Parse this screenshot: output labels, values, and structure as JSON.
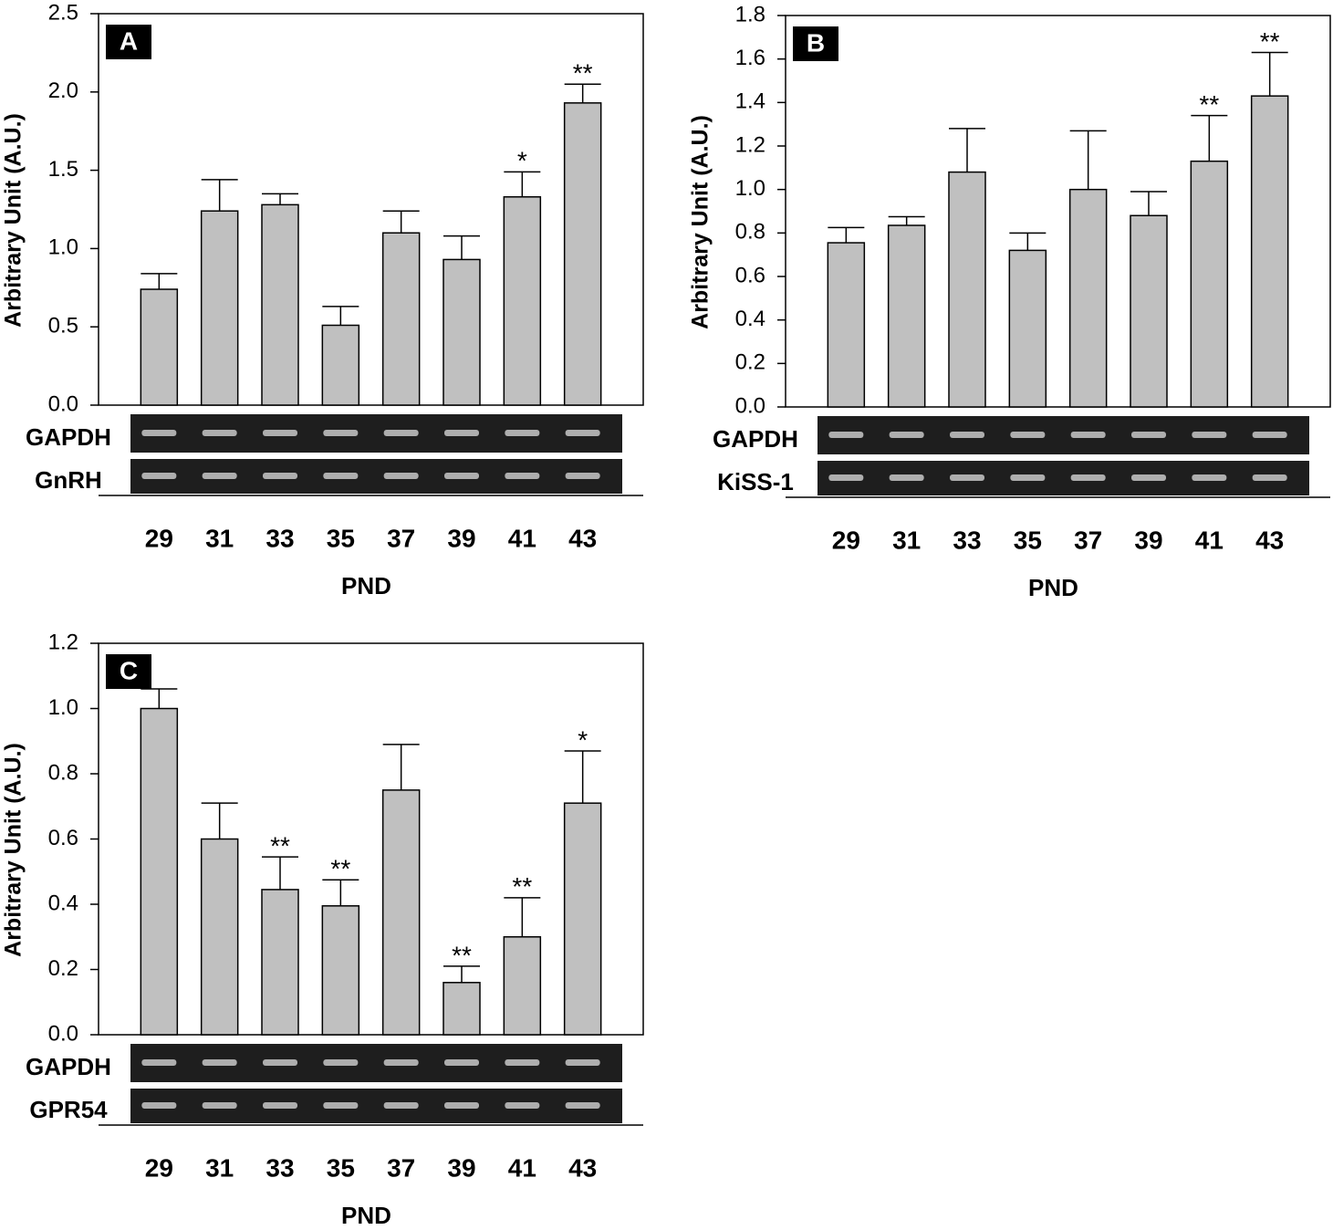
{
  "chart_data": [
    {
      "type": "bar",
      "panel_label": "A",
      "ylabel": "Arbitrary Unit (A.U.)",
      "xlabel": "PND",
      "gel_labels": [
        "GAPDH",
        "GnRH"
      ],
      "color": "#c0c0c0",
      "categories": [
        "29",
        "31",
        "33",
        "35",
        "37",
        "39",
        "41",
        "43"
      ],
      "values": [
        0.74,
        1.24,
        1.28,
        0.51,
        1.1,
        0.93,
        1.33,
        1.93
      ],
      "errors": [
        0.1,
        0.2,
        0.07,
        0.12,
        0.14,
        0.15,
        0.16,
        0.12
      ],
      "annotations": [
        null,
        null,
        null,
        null,
        null,
        null,
        "*",
        "**"
      ],
      "ylim": [
        0,
        2.5
      ],
      "yticks": [
        {
          "value": 0,
          "label": "0.0"
        },
        0.5,
        {
          "value": 1,
          "label": "1.0"
        },
        1.5,
        {
          "value": 2,
          "label": "2.0"
        },
        2.5
      ]
    },
    {
      "type": "bar",
      "panel_label": "B",
      "ylabel": "Arbitrary Unit (A.U.)",
      "xlabel": "PND",
      "gel_labels": [
        "GAPDH",
        "KiSS-1"
      ],
      "color": "#c0c0c0",
      "categories": [
        "29",
        "31",
        "33",
        "35",
        "37",
        "39",
        "41",
        "43"
      ],
      "values": [
        0.755,
        0.835,
        1.08,
        0.72,
        1.0,
        0.88,
        1.13,
        1.43
      ],
      "errors": [
        0.07,
        0.04,
        0.2,
        0.08,
        0.27,
        0.11,
        0.21,
        0.2
      ],
      "annotations": [
        null,
        null,
        null,
        null,
        null,
        null,
        "**",
        "**"
      ],
      "ylim": [
        0,
        1.8
      ],
      "yticks": [
        {
          "value": 0,
          "label": "0.0"
        },
        0.2,
        0.4,
        0.6,
        0.8,
        {
          "value": 1,
          "label": "1.0"
        },
        1.2,
        1.4,
        1.6,
        1.8
      ]
    },
    {
      "type": "bar",
      "panel_label": "C",
      "ylabel": "Arbitrary Unit (A.U.)",
      "xlabel": "PND",
      "gel_labels": [
        "GAPDH",
        "GPR54"
      ],
      "color": "#c0c0c0",
      "categories": [
        "29",
        "31",
        "33",
        "35",
        "37",
        "39",
        "41",
        "43"
      ],
      "values": [
        1.0,
        0.6,
        0.445,
        0.395,
        0.75,
        0.16,
        0.3,
        0.71
      ],
      "errors": [
        0.06,
        0.11,
        0.1,
        0.08,
        0.14,
        0.05,
        0.12,
        0.16
      ],
      "annotations": [
        null,
        null,
        "**",
        "**",
        null,
        "**",
        "**",
        "*"
      ],
      "ylim": [
        0,
        1.2
      ],
      "yticks": [
        {
          "value": 0,
          "label": "0.0"
        },
        0.2,
        0.4,
        0.6,
        0.8,
        {
          "value": 1,
          "label": "1.0"
        },
        1.2
      ]
    }
  ]
}
